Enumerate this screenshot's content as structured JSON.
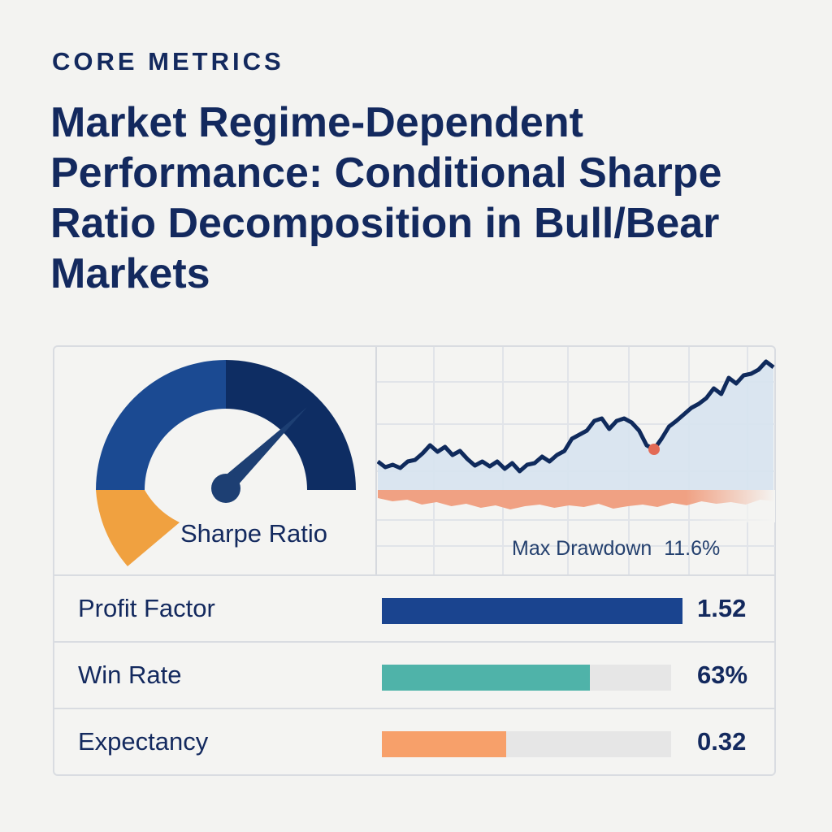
{
  "header": {
    "eyebrow": "CORE METRICS",
    "title": "Market Regime-Dependent Performance: Conditional Sharpe Ratio Decomposition in Bull/Bear Markets"
  },
  "gauge": {
    "label": "Sharpe Ratio",
    "level": 0.78,
    "colors": {
      "low": "#f0a140",
      "mid": "#1b4a92",
      "high": "#0e2d63",
      "needle": "#1d3f73"
    }
  },
  "drawdown": {
    "label": "Max Drawdown",
    "value": "11.6%"
  },
  "chart_data": [
    {
      "type": "area",
      "series": [
        {
          "values": [
            32,
            25,
            28,
            24,
            32,
            34,
            42,
            52,
            44,
            50,
            40,
            45,
            35,
            27,
            32,
            26,
            32,
            23,
            30,
            20,
            28,
            30,
            38,
            32,
            40,
            45,
            60,
            65,
            70,
            82,
            85,
            72,
            82,
            85,
            80,
            70,
            52,
            47,
            60,
            75,
            82,
            90,
            98,
            103,
            110,
            122,
            115,
            135,
            128,
            138,
            140,
            145,
            155,
            148
          ]
        }
      ],
      "highlight_index": 37,
      "colors": {
        "line": "#0f2a5c",
        "fill": "#d7e3f0",
        "marker": "#e36a55",
        "drawdown": "#f0a183"
      },
      "drawdown_values": [
        10,
        14,
        12,
        18,
        15,
        20,
        17,
        22,
        19,
        24,
        20,
        18,
        22,
        19,
        21,
        17,
        23,
        20,
        18,
        21,
        16,
        19,
        14,
        17,
        15,
        18,
        12,
        14
      ]
    },
    {
      "type": "bar",
      "categories": [
        "Profit Factor",
        "Win Rate",
        "Expectancy"
      ],
      "values": [
        "1.52",
        "63%",
        "0.32"
      ],
      "fill": [
        1.04,
        0.72,
        0.43
      ],
      "colors": [
        "#1a448f",
        "#4fb3a9",
        "#f7a06a"
      ]
    }
  ],
  "metrics": [
    {
      "label": "Profit Factor",
      "value": "1.52"
    },
    {
      "label": "Win Rate",
      "value": "63%"
    },
    {
      "label": "Expectancy",
      "value": "0.32"
    }
  ]
}
